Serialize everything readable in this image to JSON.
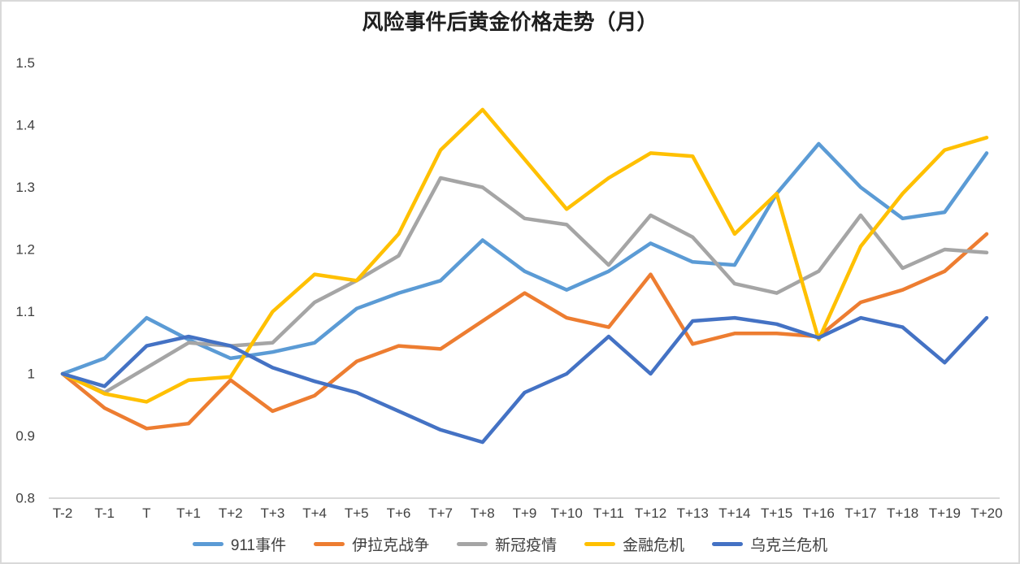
{
  "chart_data": {
    "type": "line",
    "title": "风险事件后黄金价格走势（月）",
    "categories": [
      "T-2",
      "T-1",
      "T",
      "T+1",
      "T+2",
      "T+3",
      "T+4",
      "T+5",
      "T+6",
      "T+7",
      "T+8",
      "T+9",
      "T+10",
      "T+11",
      "T+12",
      "T+13",
      "T+14",
      "T+15",
      "T+16",
      "T+17",
      "T+18",
      "T+19",
      "T+20"
    ],
    "series": [
      {
        "name": "911事件",
        "color": "#5B9BD5",
        "values": [
          1.0,
          1.025,
          1.09,
          1.055,
          1.025,
          1.035,
          1.05,
          1.105,
          1.13,
          1.15,
          1.215,
          1.165,
          1.135,
          1.165,
          1.21,
          1.18,
          1.175,
          1.29,
          1.37,
          1.3,
          1.25,
          1.26,
          1.355
        ]
      },
      {
        "name": "伊拉克战争",
        "color": "#ED7D31",
        "values": [
          1.0,
          0.945,
          0.912,
          0.92,
          0.99,
          0.94,
          0.965,
          1.02,
          1.045,
          1.04,
          1.085,
          1.13,
          1.09,
          1.075,
          1.16,
          1.048,
          1.065,
          1.065,
          1.06,
          1.115,
          1.135,
          1.165,
          1.225
        ]
      },
      {
        "name": "新冠疫情",
        "color": "#A5A5A5",
        "values": [
          1.0,
          0.97,
          1.01,
          1.05,
          1.045,
          1.05,
          1.115,
          1.15,
          1.19,
          1.315,
          1.3,
          1.25,
          1.24,
          1.175,
          1.255,
          1.22,
          1.145,
          1.13,
          1.165,
          1.255,
          1.17,
          1.2,
          1.195
        ]
      },
      {
        "name": "金融危机",
        "color": "#FFC000",
        "values": [
          1.0,
          0.968,
          0.955,
          0.99,
          0.995,
          1.1,
          1.16,
          1.15,
          1.225,
          1.36,
          1.425,
          1.345,
          1.265,
          1.315,
          1.355,
          1.35,
          1.225,
          1.29,
          1.055,
          1.205,
          1.29,
          1.36,
          1.38
        ]
      },
      {
        "name": "乌克兰危机",
        "color": "#4472C4",
        "values": [
          1.0,
          0.98,
          1.045,
          1.06,
          1.045,
          1.01,
          0.988,
          0.97,
          0.94,
          0.91,
          0.89,
          0.97,
          1.0,
          1.06,
          1.0,
          1.085,
          1.09,
          1.08,
          1.058,
          1.09,
          1.075,
          1.018,
          1.09
        ]
      }
    ],
    "y_axis": {
      "min": 0.8,
      "max": 1.5,
      "step": 0.1,
      "tick_labels": [
        "1.5",
        "1.4",
        "1.3",
        "1.2",
        "1.1",
        "1",
        "0.9",
        "0.8"
      ]
    },
    "grid": false,
    "legend_position": "bottom"
  },
  "colors": {
    "background": "#FFFFFF",
    "frame_border": "#D9D9D9",
    "axis_line": "#D9D9D9",
    "tick_text": "#404040",
    "title_text": "#1F1F1F"
  }
}
